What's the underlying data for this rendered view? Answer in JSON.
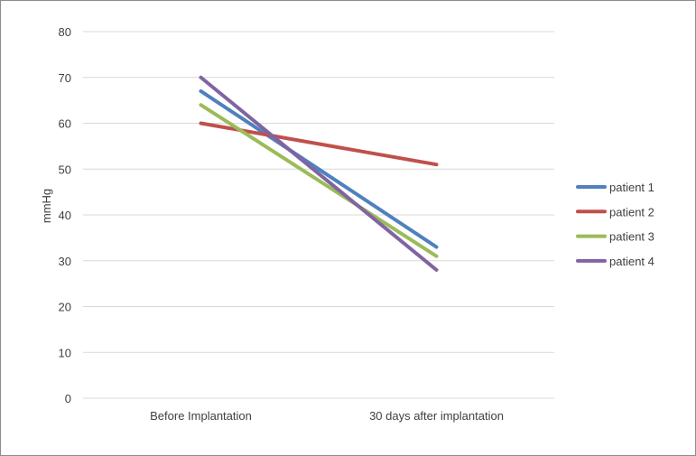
{
  "chart_data": {
    "type": "line",
    "title": "",
    "xlabel": "",
    "ylabel": "mmHg",
    "categories": [
      "Before Implantation",
      "30 days after implantation"
    ],
    "ylim": [
      0,
      80
    ],
    "yticks": [
      0,
      10,
      20,
      30,
      40,
      50,
      60,
      70,
      80
    ],
    "grid": true,
    "legend_position": "right",
    "series": [
      {
        "name": "patient 1",
        "color": "#4f81bd",
        "values": [
          67,
          33
        ]
      },
      {
        "name": "patient 2",
        "color": "#c0504d",
        "values": [
          60,
          51
        ]
      },
      {
        "name": "patient 3",
        "color": "#9bbb59",
        "values": [
          64,
          31
        ]
      },
      {
        "name": "patient 4",
        "color": "#8064a2",
        "values": [
          70,
          28
        ]
      }
    ]
  }
}
